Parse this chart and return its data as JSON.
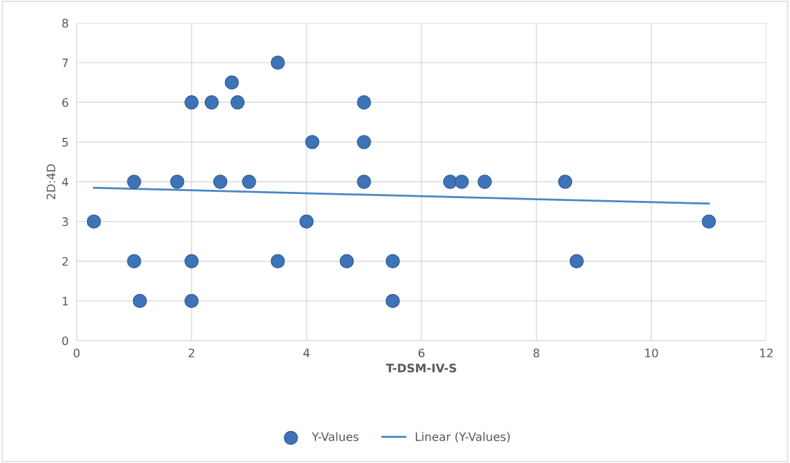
{
  "chart_data": {
    "type": "scatter",
    "xlabel": "T-DSM-IV-S",
    "ylabel": "2D:4D",
    "xlim": [
      0,
      12
    ],
    "xticks": [
      0,
      2,
      4,
      6,
      8,
      10,
      12
    ],
    "ylim": [
      0,
      8
    ],
    "yticks": [
      0,
      1,
      2,
      3,
      4,
      5,
      6,
      7,
      8
    ],
    "grid": true,
    "legend": "bottom",
    "series": [
      {
        "name": "Y-Values",
        "marker": "circle",
        "color": "#3f73b8",
        "x": [
          0.3,
          1,
          1,
          1.1,
          1.75,
          2,
          2,
          2,
          2.35,
          2.7,
          2.8,
          2.5,
          3,
          3.5,
          3.5,
          4,
          4.1,
          4.7,
          5,
          5,
          5,
          5.5,
          5.5,
          6.5,
          6.7,
          7.1,
          8.5,
          8.7,
          11
        ],
        "values": [
          3,
          4,
          2,
          1,
          4,
          6,
          2,
          1,
          6,
          6.5,
          6,
          4,
          4,
          7,
          2,
          3,
          5,
          2,
          6,
          5,
          4,
          2,
          1,
          4,
          4,
          4,
          4,
          2,
          3
        ]
      },
      {
        "name": "Linear (Y-Values)",
        "type": "line",
        "color": "#4a86c5",
        "x": [
          0.3,
          11
        ],
        "values": [
          3.85,
          3.45
        ]
      }
    ]
  }
}
